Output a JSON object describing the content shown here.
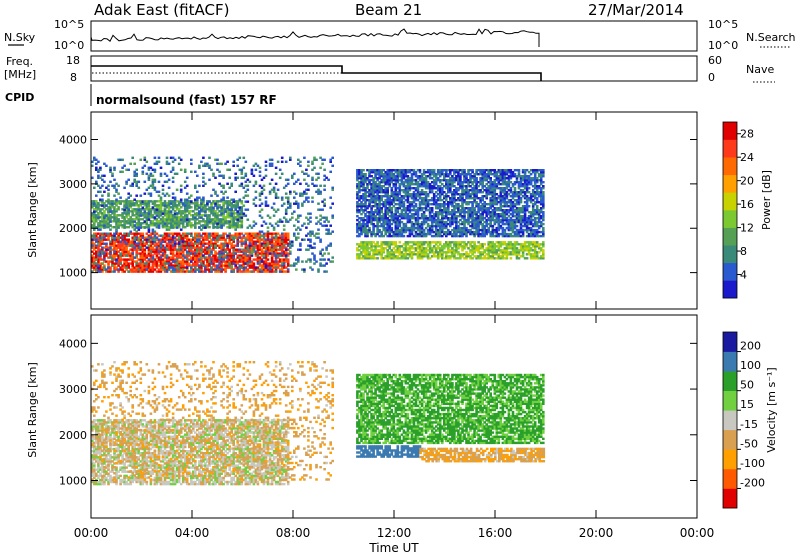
{
  "header": {
    "station": "Adak East (fitACF)",
    "beam": "Beam 21",
    "date": "27/Mar/2014"
  },
  "noise_panel": {
    "left_label": "N.Sky",
    "left_ticks": [
      "10^5",
      "10^0"
    ],
    "right_label": "N.Search",
    "right_ticks": [
      "10^5",
      "10^0"
    ]
  },
  "freq_panel": {
    "left_label_line1": "Freq.",
    "left_label_line2": "[MHz]",
    "left_ticks": [
      "18",
      "8"
    ],
    "right_label": "Nave",
    "right_ticks": [
      "60",
      "0"
    ]
  },
  "cpid": {
    "label": "CPID",
    "text": "normalsound (fast) 157 RF"
  },
  "colors": {
    "power": [
      "#1a1acc",
      "#2a5ad0",
      "#3a8a7a",
      "#55a055",
      "#7cc830",
      "#c8d200",
      "#ffa000",
      "#ff6a00",
      "#ff3a1a",
      "#e00000"
    ],
    "velocity": [
      "#e00000",
      "#ff5a00",
      "#ffa000",
      "#d8a050",
      "#c8c8c0",
      "#70d040",
      "#2aa02a",
      "#3a7ab0",
      "#1a1aa0"
    ]
  },
  "chart_data": [
    {
      "type": "heatmap",
      "title": "",
      "parameter": "Power",
      "xlabel": "Time UT",
      "ylabel": "Slant Range [km]",
      "xlim_hours": [
        0,
        24
      ],
      "ylim_km": [
        180,
        4620
      ],
      "x_ticks": [
        "00:00",
        "04:00",
        "08:00",
        "12:00",
        "16:00",
        "20:00",
        "00:00"
      ],
      "y_ticks": [
        "1000",
        "2000",
        "3000",
        "4000"
      ],
      "colorbar": {
        "label": "Power [dB]",
        "ticks": [
          "4",
          "8",
          "12",
          "16",
          "20",
          "24",
          "28"
        ],
        "range": [
          0,
          30
        ]
      },
      "features": [
        {
          "feature": "strong backscatter band",
          "hours": [
            0.0,
            7.8
          ],
          "range_km": [
            1000,
            1900
          ],
          "value_db": 26
        },
        {
          "feature": "moderate band",
          "hours": [
            0.0,
            6.0
          ],
          "range_km": [
            2000,
            2600
          ],
          "value_db": 10
        },
        {
          "feature": "scattered echoes",
          "hours": [
            0.0,
            9.6
          ],
          "range_km": [
            1000,
            3600
          ],
          "value_db": 6
        },
        {
          "feature": "band",
          "hours": [
            10.5,
            17.9
          ],
          "range_km": [
            1300,
            1700
          ],
          "value_db": 14
        },
        {
          "feature": "arc",
          "hours": [
            10.5,
            17.9
          ],
          "range_km": [
            1800,
            3300
          ],
          "value_db": 5
        }
      ]
    },
    {
      "type": "heatmap",
      "title": "",
      "parameter": "Velocity",
      "xlabel": "Time UT",
      "ylabel": "Slant Range [km]",
      "xlim_hours": [
        0,
        24
      ],
      "ylim_km": [
        180,
        4620
      ],
      "x_ticks": [
        "00:00",
        "04:00",
        "08:00",
        "12:00",
        "16:00",
        "20:00",
        "00:00"
      ],
      "y_ticks": [
        "1000",
        "2000",
        "3000",
        "4000"
      ],
      "colorbar": {
        "label": "Velocity [m s⁻¹]",
        "ticks": [
          "200",
          "100",
          "50",
          "15",
          "-15",
          "-50",
          "-100",
          "-200"
        ],
        "range": [
          -250,
          250
        ]
      },
      "features": [
        {
          "feature": "ground scatter",
          "hours": [
            0.0,
            7.8
          ],
          "range_km": [
            900,
            2300
          ],
          "value_ms": 0
        },
        {
          "feature": "scattered echoes",
          "hours": [
            0.0,
            9.6
          ],
          "range_km": [
            1000,
            3600
          ],
          "value_ms": -40
        },
        {
          "feature": "band",
          "hours": [
            10.5,
            13.0
          ],
          "range_km": [
            1500,
            1750
          ],
          "value_ms": 150
        },
        {
          "feature": "band",
          "hours": [
            13.0,
            17.9
          ],
          "range_km": [
            1400,
            1700
          ],
          "value_ms": -40
        },
        {
          "feature": "arc",
          "hours": [
            10.5,
            17.9
          ],
          "range_km": [
            1800,
            3300
          ],
          "value_ms": 60
        }
      ]
    }
  ]
}
